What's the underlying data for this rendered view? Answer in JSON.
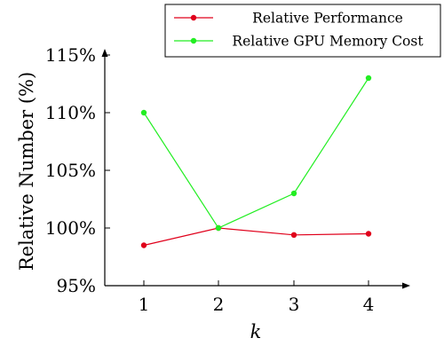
{
  "chart_data": {
    "type": "line",
    "x": [
      1,
      2,
      3,
      4
    ],
    "xlabel": "k",
    "ylabel": "Relative Number (%)",
    "ylim": [
      95,
      115
    ],
    "yticks": [
      95,
      100,
      105,
      110,
      115
    ],
    "ytick_labels": [
      "95%",
      "100%",
      "105%",
      "110%",
      "115%"
    ],
    "xtick_labels": [
      "1",
      "2",
      "3",
      "4"
    ],
    "grid": false,
    "legend_position": "top-right",
    "series": [
      {
        "name": "Relative Performance",
        "color": "#e0001b",
        "values": [
          98.5,
          100.0,
          99.4,
          99.5
        ]
      },
      {
        "name": "Relative GPU Memory Cost",
        "color": "#22ee22",
        "values": [
          110.0,
          100.0,
          103.0,
          113.0
        ]
      }
    ]
  }
}
